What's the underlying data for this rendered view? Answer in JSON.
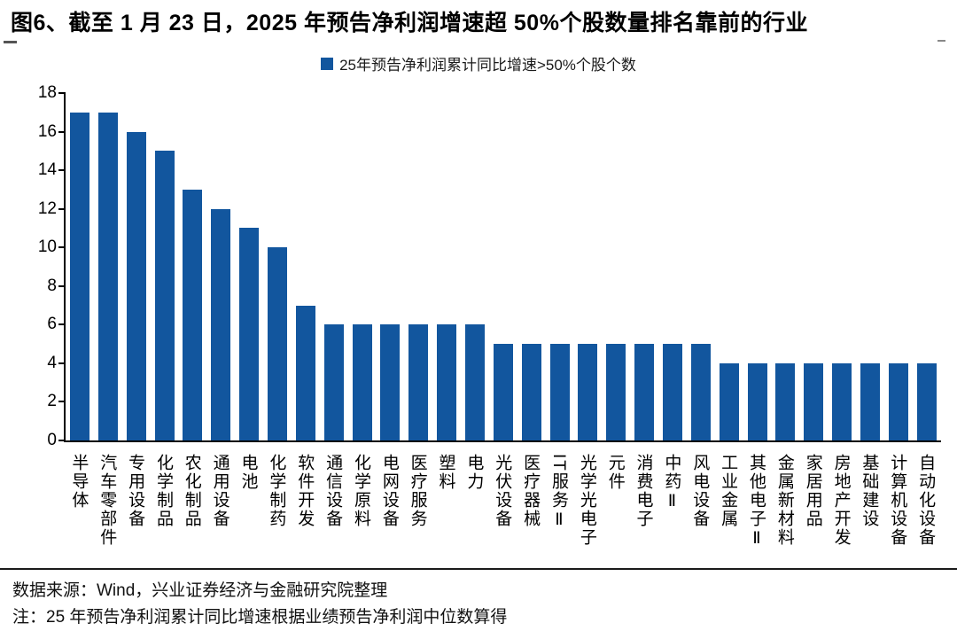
{
  "title": "图6、截至 1 月 23 日，2025 年预告净利润增速超 50%个股数量排名靠前的行业",
  "legend": {
    "label": "25年预告净利润累计同比增速>50%个股个数",
    "marker_color": "#12569E"
  },
  "footer": {
    "source": "数据来源：Wind，兴业证券经济与金融研究院整理",
    "note": "注：25 年预告净利润累计同比增速根据业绩预告净利润中位数算得"
  },
  "colors": {
    "bar": "#12569E",
    "axis": "#000000",
    "title_text": "#000000"
  },
  "chart_data": {
    "type": "bar",
    "title": "",
    "legend": "25年预告净利润累计同比增速>50%个股个数",
    "legend_position": "top-center",
    "grid": false,
    "bar_color": "#12569E",
    "ylim": [
      0,
      18
    ],
    "yticks": [
      0,
      2,
      4,
      6,
      8,
      10,
      12,
      14,
      16,
      18
    ],
    "xlabel": "",
    "ylabel": "",
    "categories": [
      "半导体",
      "汽车零部件",
      "专用设备",
      "化学制品",
      "农化制品",
      "通用设备",
      "电池",
      "化学制药",
      "软件开发",
      "通信设备",
      "化学原料",
      "电网设备",
      "医疗服务",
      "塑料",
      "电力",
      "光伏设备",
      "医疗器械",
      "IT服务Ⅱ",
      "光学光电子",
      "元件",
      "消费电子",
      "中药Ⅱ",
      "风电设备",
      "工业金属",
      "其他电子Ⅱ",
      "金属新材料",
      "家居用品",
      "房地产开发",
      "基础建设",
      "计算机设备",
      "自动化设备"
    ],
    "values": [
      17,
      17,
      16,
      15,
      13,
      12,
      11,
      10,
      7,
      6,
      6,
      6,
      6,
      6,
      6,
      5,
      5,
      5,
      5,
      5,
      5,
      5,
      5,
      4,
      4,
      4,
      4,
      4,
      4,
      4,
      4
    ]
  }
}
